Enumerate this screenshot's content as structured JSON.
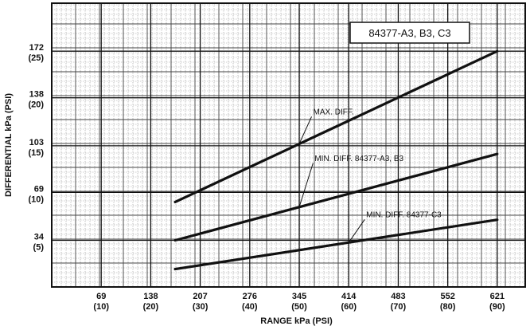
{
  "chart_data": {
    "type": "line",
    "title": "84377-A3, B3, C3",
    "xlabel": "RANGE kPa (PSI)",
    "ylabel": "DIFFERENTIAL kPa (PSI)",
    "xlim": [
      0,
      660
    ],
    "ylim": [
      0,
      207
    ],
    "grid": true,
    "x_ticks": [
      {
        "value": 69,
        "label": "69",
        "sub": "(10)"
      },
      {
        "value": 138,
        "label": "138",
        "sub": "(20)"
      },
      {
        "value": 207,
        "label": "207",
        "sub": "(30)"
      },
      {
        "value": 276,
        "label": "276",
        "sub": "(40)"
      },
      {
        "value": 345,
        "label": "345",
        "sub": "(50)"
      },
      {
        "value": 414,
        "label": "414",
        "sub": "(60)"
      },
      {
        "value": 483,
        "label": "483",
        "sub": "(70)"
      },
      {
        "value": 552,
        "label": "552",
        "sub": "(80)"
      },
      {
        "value": 621,
        "label": "621",
        "sub": "(90)"
      }
    ],
    "y_ticks": [
      {
        "value": 34,
        "label": "34",
        "sub": "(5)"
      },
      {
        "value": 69,
        "label": "69",
        "sub": "(10)"
      },
      {
        "value": 103,
        "label": "103",
        "sub": "(15)"
      },
      {
        "value": 138,
        "label": "138",
        "sub": "(20)"
      },
      {
        "value": 172,
        "label": "172",
        "sub": "(25)"
      }
    ],
    "series": [
      {
        "name": "MAX. DIFF.",
        "x": [
          172,
          621
        ],
        "y": [
          62,
          172
        ]
      },
      {
        "name": "MIN. DIFF. 84377-A3, B3",
        "x": [
          172,
          621
        ],
        "y": [
          34,
          97
        ]
      },
      {
        "name": "MIN. DIFF. 84377-C3",
        "x": [
          172,
          621
        ],
        "y": [
          13,
          49
        ]
      }
    ],
    "annotations": [
      {
        "text": "MAX. DIFF.",
        "series": 0,
        "at_x": 345,
        "label_x": 360,
        "label_y": 126
      },
      {
        "text": "MIN. DIFF. 84377-A3, B3",
        "series": 1,
        "at_x": 345,
        "label_x": 362,
        "label_y": 92
      },
      {
        "text": "MIN. DIFF. 84377-C3",
        "series": 2,
        "at_x": 414,
        "label_x": 434,
        "label_y": 51
      }
    ]
  }
}
